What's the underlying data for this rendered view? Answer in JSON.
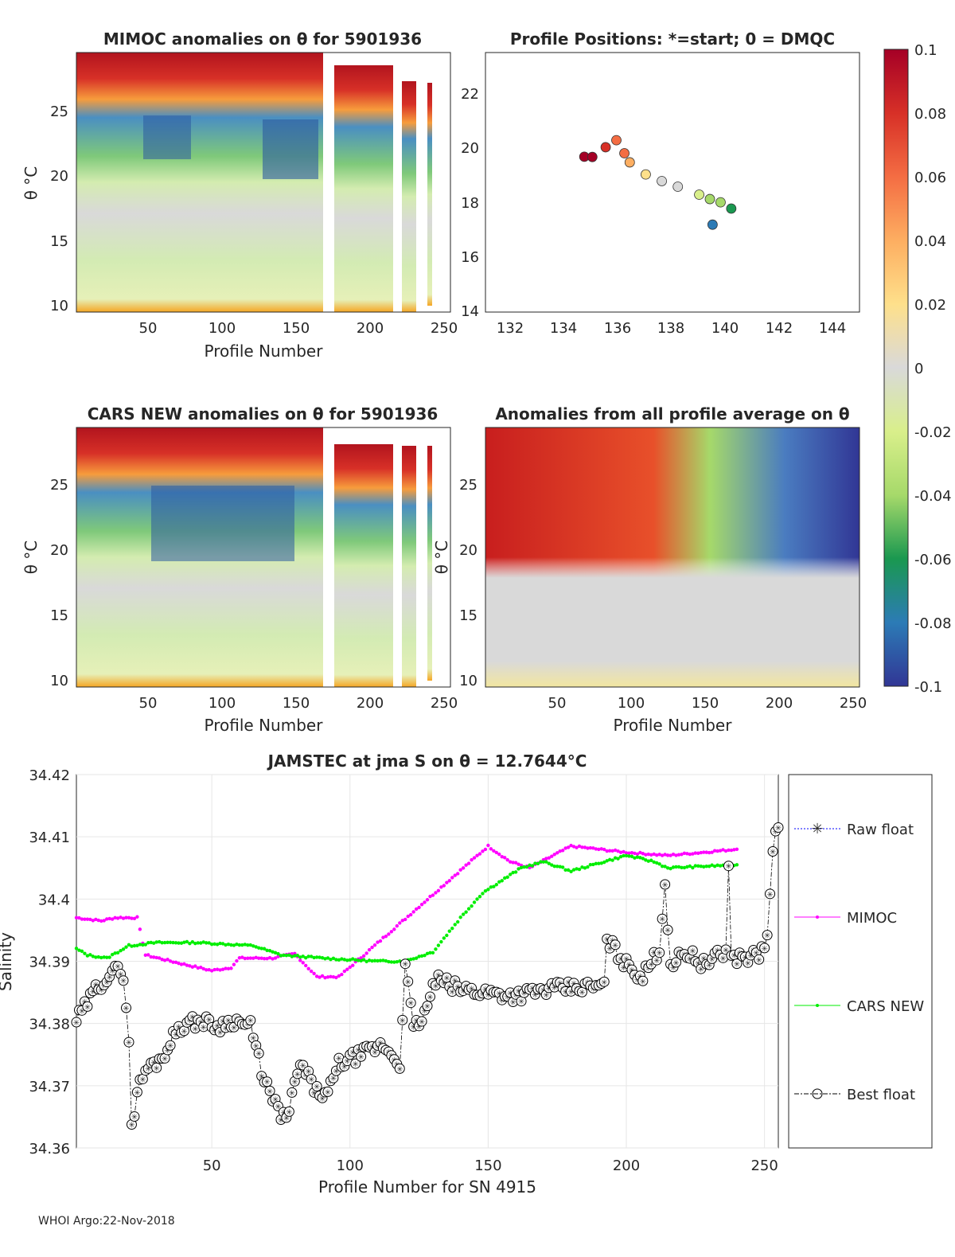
{
  "footer": "WHOI Argo:22-Nov-2018",
  "colorbar": {
    "ticks": [
      "0.1",
      "0.08",
      "0.06",
      "0.04",
      "0.02",
      "0",
      "-0.02",
      "-0.04",
      "-0.06",
      "-0.08",
      "-0.1"
    ],
    "colors": [
      "#a50026",
      "#d73027",
      "#f46d43",
      "#fdae61",
      "#fee08b",
      "#d9d9d9",
      "#d9ef8b",
      "#a6d96a",
      "#1a9850",
      "#2c7bb6",
      "#313695"
    ]
  },
  "panels": {
    "mimoc": {
      "title": "MIMOC anomalies on θ  for 5901936",
      "xlabel": "Profile Number",
      "ylabel": "θ °C",
      "xticks": [
        "50",
        "100",
        "150",
        "200",
        "250"
      ],
      "yticks": [
        "25",
        "20",
        "15",
        "10"
      ]
    },
    "positions": {
      "title": "Profile Positions: *=start; 0 = DMQC",
      "xticks": [
        "132",
        "134",
        "136",
        "138",
        "140",
        "142",
        "144"
      ],
      "yticks": [
        "22",
        "20",
        "18",
        "16",
        "14"
      ]
    },
    "cars": {
      "title": "CARS NEW anomalies on θ for 5901936",
      "xlabel": "Profile Number",
      "ylabel": "θ °C",
      "xticks": [
        "50",
        "100",
        "150",
        "200",
        "250"
      ],
      "yticks": [
        "25",
        "20",
        "15",
        "10"
      ]
    },
    "allavg": {
      "title": "Anomalies from all profile average on θ",
      "xlabel": "Profile Number",
      "ylabel": "θ °C",
      "xticks": [
        "50",
        "100",
        "150",
        "200",
        "250"
      ],
      "yticks": [
        "25",
        "20",
        "15",
        "10"
      ]
    }
  },
  "chart_data": {
    "type": "scatter",
    "title": "JAMSTEC at jma S on θ = 12.7644°C",
    "xlabel": "Profile Number for SN 4915",
    "ylabel": "Salinity",
    "xlim": [
      1,
      255
    ],
    "ylim": [
      34.36,
      34.42
    ],
    "xticks": [
      "50",
      "100",
      "150",
      "200",
      "250"
    ],
    "yticks": [
      "34.42",
      "34.41",
      "34.4",
      "34.39",
      "34.38",
      "34.37",
      "34.36"
    ],
    "legend": {
      "placement": "right",
      "entries": [
        "Raw float",
        "MIMOC",
        "CARS NEW",
        "Best float"
      ]
    },
    "colors": {
      "raw": "#0000ff",
      "mimoc": "#ff00ff",
      "cars": "#00ee00",
      "best": "#000000"
    },
    "series": [
      {
        "name": "MIMOC",
        "knots": [
          [
            1,
            34.397
          ],
          [
            10,
            34.3965
          ],
          [
            15,
            34.397
          ],
          [
            23,
            34.397
          ],
          [
            26,
            34.391
          ],
          [
            40,
            34.3895
          ],
          [
            50,
            34.3885
          ],
          [
            57,
            34.389
          ],
          [
            60,
            34.3905
          ],
          [
            72,
            34.3905
          ],
          [
            80,
            34.3912
          ],
          [
            88,
            34.3875
          ],
          [
            96,
            34.3875
          ],
          [
            150,
            34.4085
          ],
          [
            158,
            34.406
          ],
          [
            165,
            34.405
          ],
          [
            180,
            34.4085
          ],
          [
            200,
            34.4075
          ],
          [
            215,
            34.407
          ],
          [
            240,
            34.408
          ]
        ]
      },
      {
        "name": "CARS NEW",
        "knots": [
          [
            1,
            34.392
          ],
          [
            5,
            34.391
          ],
          [
            12,
            34.3905
          ],
          [
            20,
            34.3925
          ],
          [
            30,
            34.393
          ],
          [
            45,
            34.393
          ],
          [
            65,
            34.3925
          ],
          [
            75,
            34.391
          ],
          [
            90,
            34.3905
          ],
          [
            110,
            34.39
          ],
          [
            120,
            34.39
          ],
          [
            130,
            34.3915
          ],
          [
            140,
            34.397
          ],
          [
            148,
            34.401
          ],
          [
            162,
            34.405
          ],
          [
            170,
            34.406
          ],
          [
            180,
            34.4045
          ],
          [
            200,
            34.407
          ],
          [
            210,
            34.406
          ],
          [
            215,
            34.405
          ],
          [
            240,
            34.4055
          ]
        ]
      },
      {
        "name": "Best float",
        "knots": [
          [
            1,
            34.3805
          ],
          [
            4,
            34.3825
          ],
          [
            8,
            34.3855
          ],
          [
            14,
            34.3885
          ],
          [
            18,
            34.388
          ],
          [
            20,
            34.3775
          ],
          [
            21,
            34.363
          ],
          [
            23,
            34.369
          ],
          [
            26,
            34.3725
          ],
          [
            32,
            34.3745
          ],
          [
            38,
            34.3795
          ],
          [
            46,
            34.3805
          ],
          [
            52,
            34.3795
          ],
          [
            58,
            34.3805
          ],
          [
            64,
            34.3795
          ],
          [
            68,
            34.3725
          ],
          [
            72,
            34.3675
          ],
          [
            75,
            34.3655
          ],
          [
            77,
            34.3645
          ],
          [
            82,
            34.3735
          ],
          [
            88,
            34.369
          ],
          [
            92,
            34.3685
          ],
          [
            96,
            34.3735
          ],
          [
            104,
            34.375
          ],
          [
            112,
            34.3765
          ],
          [
            118,
            34.3735
          ],
          [
            120,
            34.3895
          ],
          [
            123,
            34.379
          ],
          [
            127,
            34.3815
          ],
          [
            131,
            34.387
          ],
          [
            140,
            34.3855
          ],
          [
            160,
            34.3845
          ],
          [
            172,
            34.3855
          ],
          [
            192,
            34.386
          ],
          [
            193,
            34.3935
          ],
          [
            200,
            34.3895
          ],
          [
            206,
            34.3875
          ],
          [
            212,
            34.392
          ],
          [
            214,
            34.4025
          ],
          [
            216,
            34.3895
          ],
          [
            222,
            34.3915
          ],
          [
            228,
            34.3895
          ],
          [
            236,
            34.3915
          ],
          [
            237,
            34.406
          ],
          [
            238,
            34.3905
          ],
          [
            248,
            34.391
          ],
          [
            251,
            34.3935
          ],
          [
            253,
            34.4085
          ],
          [
            255,
            34.4115
          ]
        ]
      }
    ]
  }
}
